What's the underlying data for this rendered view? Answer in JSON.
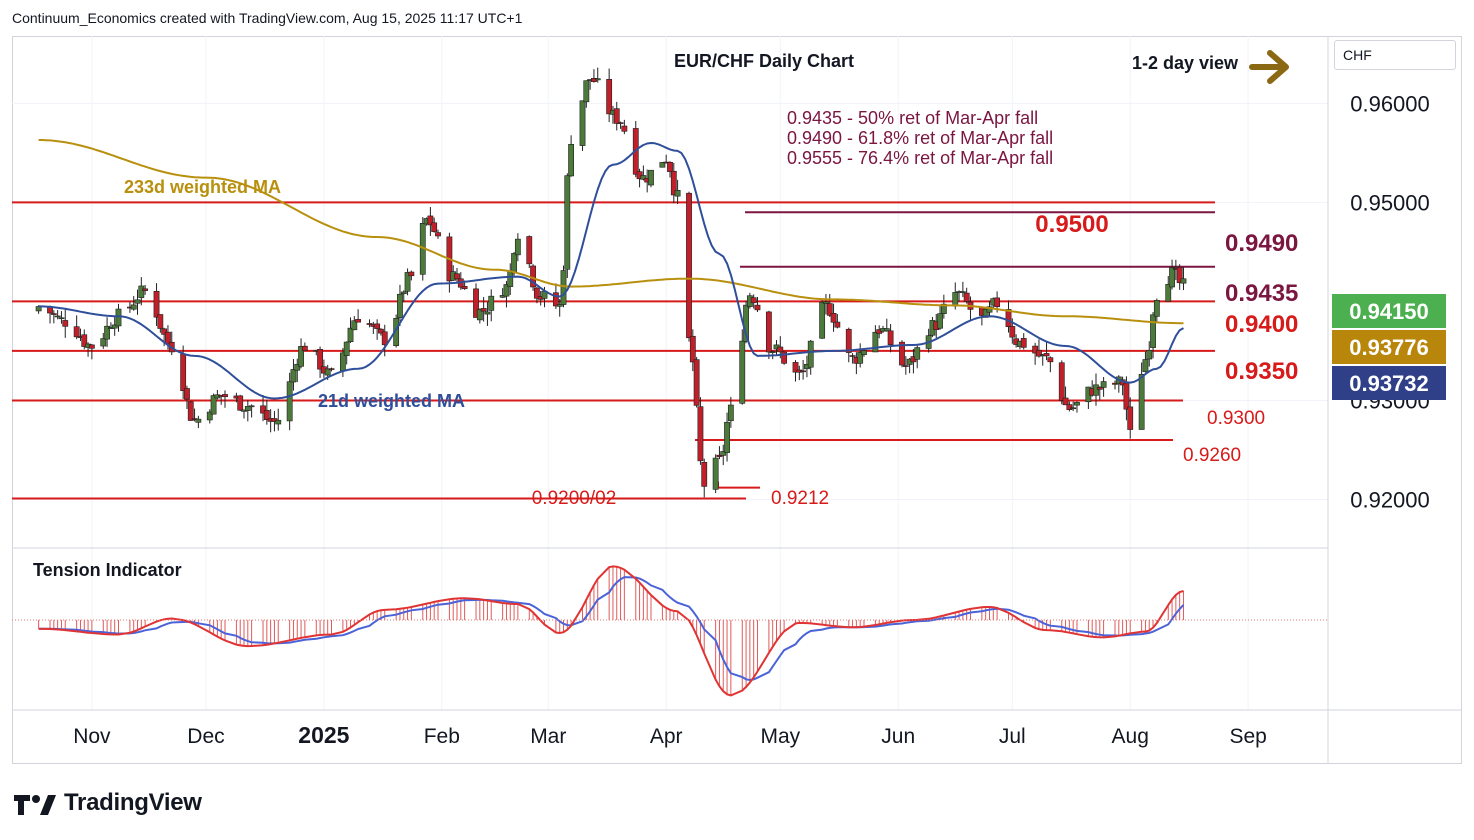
{
  "header": "Continuum_Economics created with TradingView.com, Aug 15, 2025 11:17 UTC+1",
  "currency_selector": "CHF",
  "brand": "TradingView",
  "view_label": "1-2 day view",
  "colors": {
    "candle_up": "#4c7a3a",
    "candle_down": "#c0202a",
    "ma_233": "#b8900e",
    "ma_21": "#2f4f9a",
    "support_resistance": "#d71a1a",
    "retracement": "#7b1640",
    "arrow": "#8b6914",
    "last_price_bg": "#4caf50",
    "ma233_tag_bg": "#b8860b",
    "ma21_tag_bg": "#2f3f88"
  },
  "chart_data": [
    {
      "type": "candlestick",
      "title": "EUR/CHF Daily Chart",
      "y_ticks": [
        "0.96000",
        "0.95000",
        "0.93000",
        "0.92000"
      ],
      "ylim": [
        0.9151,
        0.9668
      ],
      "x_ticks": [
        "Nov",
        "Dec",
        "2025",
        "Feb",
        "Mar",
        "Apr",
        "May",
        "Jun",
        "Jul",
        "Aug",
        "Sep"
      ],
      "levels": [
        {
          "value": 0.95,
          "label": "0.9500"
        },
        {
          "value": 0.94,
          "label": "0.9400"
        },
        {
          "value": 0.935,
          "label": "0.9350"
        },
        {
          "value": 0.93,
          "label": "0.9300"
        },
        {
          "value": 0.926,
          "label": "0.9260"
        },
        {
          "value": 0.9212,
          "label": "0.9212"
        },
        {
          "value": 0.9201,
          "label": "0.9200/02"
        }
      ],
      "retracements": [
        {
          "value": 0.949,
          "label": "0.9490"
        },
        {
          "value": 0.9435,
          "label": "0.9435"
        }
      ],
      "annotations": [
        "0.9435 - 50% ret of Mar-Apr fall",
        "0.9490 - 61.8% ret of Mar-Apr fall",
        "0.9555 - 76.4% ret of Mar-Apr fall"
      ],
      "ma_labels": {
        "ma233": "233d weighted MA",
        "ma21": "21d weighted MA"
      },
      "price_tags": [
        {
          "value": "0.94150",
          "kind": "last"
        },
        {
          "value": "0.93776",
          "kind": "ma233"
        },
        {
          "value": "0.93732",
          "kind": "ma21"
        }
      ],
      "anchors": [
        [
          "2024-10-18",
          0.9395
        ],
        [
          "2024-10-25",
          0.938
        ],
        [
          "2024-11-01",
          0.9355
        ],
        [
          "2024-11-08",
          0.9385
        ],
        [
          "2024-11-15",
          0.941
        ],
        [
          "2024-11-22",
          0.9355
        ],
        [
          "2024-11-28",
          0.928
        ],
        [
          "2024-12-05",
          0.9305
        ],
        [
          "2024-12-12",
          0.9295
        ],
        [
          "2024-12-19",
          0.9278
        ],
        [
          "2024-12-27",
          0.9355
        ],
        [
          "2025-01-03",
          0.9325
        ],
        [
          "2025-01-10",
          0.9385
        ],
        [
          "2025-01-17",
          0.9362
        ],
        [
          "2025-01-24",
          0.9425
        ],
        [
          "2025-01-28",
          0.9482
        ],
        [
          "2025-02-04",
          0.9425
        ],
        [
          "2025-02-11",
          0.939
        ],
        [
          "2025-02-18",
          0.9415
        ],
        [
          "2025-02-21",
          0.947
        ],
        [
          "2025-02-27",
          0.9405
        ],
        [
          "2025-03-04",
          0.9395
        ],
        [
          "2025-03-07",
          0.9565
        ],
        [
          "2025-03-12",
          0.9625
        ],
        [
          "2025-03-19",
          0.9585
        ],
        [
          "2025-03-26",
          0.9525
        ],
        [
          "2025-04-01",
          0.9545
        ],
        [
          "2025-04-04",
          0.9505
        ],
        [
          "2025-04-07",
          0.936
        ],
        [
          "2025-04-11",
          0.9215
        ],
        [
          "2025-04-15",
          0.9238
        ],
        [
          "2025-04-18",
          0.929
        ],
        [
          "2025-04-23",
          0.9408
        ],
        [
          "2025-04-29",
          0.9352
        ],
        [
          "2025-05-06",
          0.9325
        ],
        [
          "2025-05-13",
          0.9395
        ],
        [
          "2025-05-20",
          0.9342
        ],
        [
          "2025-05-27",
          0.9372
        ],
        [
          "2025-06-03",
          0.9335
        ],
        [
          "2025-06-10",
          0.9375
        ],
        [
          "2025-06-16",
          0.9408
        ],
        [
          "2025-06-23",
          0.9382
        ],
        [
          "2025-06-27",
          0.9398
        ],
        [
          "2025-07-03",
          0.9358
        ],
        [
          "2025-07-10",
          0.9342
        ],
        [
          "2025-07-16",
          0.9292
        ],
        [
          "2025-07-23",
          0.9312
        ],
        [
          "2025-07-30",
          0.9318
        ],
        [
          "2025-08-01",
          0.9265
        ],
        [
          "2025-08-05",
          0.9342
        ],
        [
          "2025-08-08",
          0.9408
        ],
        [
          "2025-08-12",
          0.9428
        ],
        [
          "2025-08-15",
          0.9415
        ]
      ],
      "ma233_anchors": [
        [
          "2024-10-18",
          0.9563
        ],
        [
          "2024-12-01",
          0.9525
        ],
        [
          "2025-01-15",
          0.9465
        ],
        [
          "2025-02-15",
          0.9432
        ],
        [
          "2025-03-07",
          0.9415
        ],
        [
          "2025-04-07",
          0.9423
        ],
        [
          "2025-05-15",
          0.9402
        ],
        [
          "2025-06-15",
          0.9396
        ],
        [
          "2025-07-15",
          0.9385
        ],
        [
          "2025-08-15",
          0.9378
        ]
      ],
      "ma21_anchors": [
        [
          "2024-10-18",
          0.9395
        ],
        [
          "2024-11-08",
          0.9385
        ],
        [
          "2024-11-28",
          0.9345
        ],
        [
          "2024-12-19",
          0.9302
        ],
        [
          "2025-01-10",
          0.9332
        ],
        [
          "2025-01-31",
          0.9418
        ],
        [
          "2025-02-21",
          0.9425
        ],
        [
          "2025-03-04",
          0.9405
        ],
        [
          "2025-03-18",
          0.9538
        ],
        [
          "2025-03-28",
          0.956
        ],
        [
          "2025-04-04",
          0.9552
        ],
        [
          "2025-04-15",
          0.9448
        ],
        [
          "2025-04-25",
          0.9345
        ],
        [
          "2025-05-15",
          0.935
        ],
        [
          "2025-06-05",
          0.9356
        ],
        [
          "2025-06-25",
          0.9385
        ],
        [
          "2025-07-15",
          0.9355
        ],
        [
          "2025-08-01",
          0.9318
        ],
        [
          "2025-08-08",
          0.9332
        ],
        [
          "2025-08-15",
          0.9373
        ]
      ]
    },
    {
      "type": "line",
      "title": "Tension Indicator",
      "series_anchors": [
        [
          "2024-10-18",
          -0.3
        ],
        [
          "2024-11-08",
          -0.5
        ],
        [
          "2024-11-22",
          0.05
        ],
        [
          "2024-12-12",
          -0.9
        ],
        [
          "2025-01-03",
          -0.5
        ],
        [
          "2025-01-17",
          0.35
        ],
        [
          "2025-02-07",
          0.75
        ],
        [
          "2025-02-21",
          0.55
        ],
        [
          "2025-03-04",
          -0.45
        ],
        [
          "2025-03-18",
          1.85
        ],
        [
          "2025-04-04",
          0.3
        ],
        [
          "2025-04-18",
          -2.6
        ],
        [
          "2025-05-06",
          -0.1
        ],
        [
          "2025-05-20",
          -0.25
        ],
        [
          "2025-06-05",
          0.0
        ],
        [
          "2025-06-25",
          0.45
        ],
        [
          "2025-07-10",
          -0.35
        ],
        [
          "2025-07-25",
          -0.6
        ],
        [
          "2025-08-05",
          -0.4
        ],
        [
          "2025-08-15",
          1.0
        ]
      ]
    }
  ]
}
